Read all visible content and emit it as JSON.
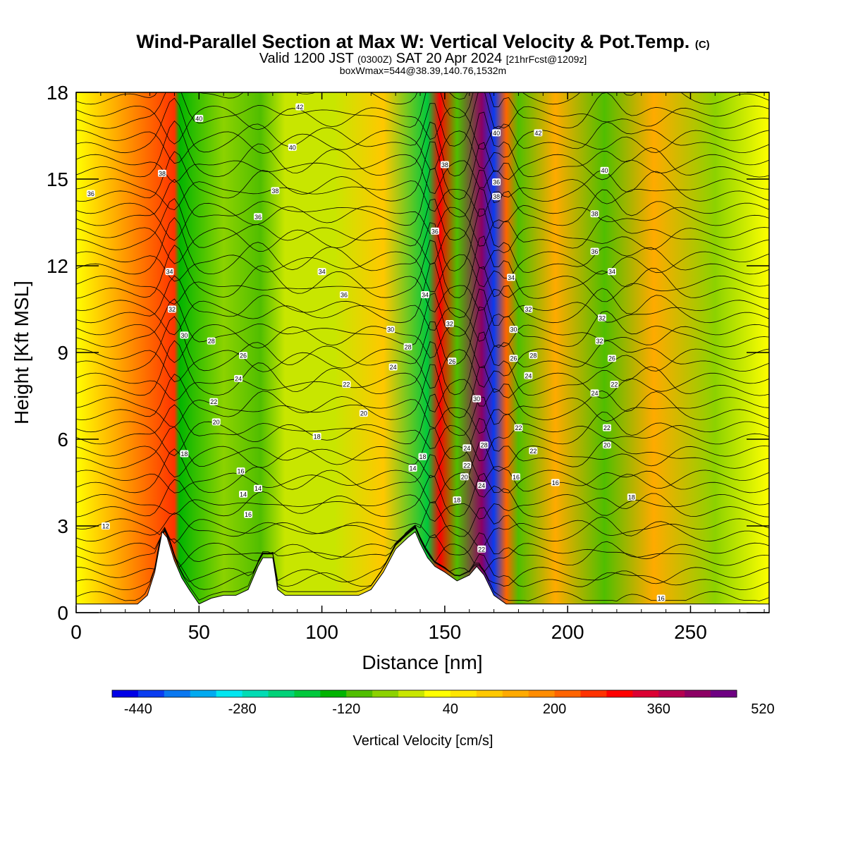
{
  "header": {
    "title": "Wind-Parallel Section at Max W: Vertical Velocity & Pot.Temp.",
    "copyright": "(C)",
    "valid_prefix": "Valid 1200 JST",
    "valid_utc": "(0300Z)",
    "valid_date": "SAT 20 Apr 2024",
    "forecast_info": "[21hrFcst@1209z]",
    "box_info": "boxWmax=544@38.39,140.76,1532m"
  },
  "colorbar": {
    "title": "Vertical Velocity [cm/s]",
    "tick_labels": [
      "-440",
      "-280",
      "-120",
      "40",
      "200",
      "360",
      "520"
    ],
    "tick_values": [
      -440,
      -280,
      -120,
      40,
      200,
      360,
      520
    ],
    "levels_min": -480,
    "levels_step": 40,
    "colors": [
      "#0000e6",
      "#0a3cf0",
      "#0a78f0",
      "#00aaf0",
      "#00e6f0",
      "#00dcb4",
      "#00d278",
      "#00c83c",
      "#00b400",
      "#50be00",
      "#8cd200",
      "#c8e600",
      "#ffff00",
      "#ffe600",
      "#ffc800",
      "#ffaa00",
      "#ff8c00",
      "#ff6400",
      "#ff3200",
      "#ff0000",
      "#dc0032",
      "#b40050",
      "#8c0064",
      "#6e0082"
    ]
  },
  "chart_data": {
    "type": "heatmap",
    "title": "Wind-Parallel Section at Max W: Vertical Velocity & Pot.Temp.",
    "xlabel": "Distance [nm]",
    "ylabel": "Height [Kft MSL]",
    "xlim": [
      0,
      282
    ],
    "ylim": [
      0,
      18
    ],
    "xticks": [
      0,
      50,
      100,
      150,
      200,
      250
    ],
    "yticks": [
      0,
      3,
      6,
      9,
      12,
      15,
      18
    ],
    "fill_variable": "Vertical Velocity [cm/s]",
    "contour_variable": "Potential temperature [C]",
    "max_vertical_velocity_cm_s": 544,
    "terrain_profile": {
      "distance_nm": [
        0,
        25,
        29,
        32,
        35,
        37,
        40,
        43,
        46,
        50,
        55,
        60,
        65,
        70,
        74,
        76,
        80,
        82,
        85,
        88,
        95,
        100,
        105,
        110,
        115,
        120,
        125,
        130,
        135,
        138,
        140,
        143,
        146,
        150,
        155,
        160,
        163,
        166,
        170,
        175,
        180,
        190,
        200,
        230,
        250,
        282
      ],
      "height_kft": [
        0.3,
        0.3,
        0.6,
        1.4,
        2.8,
        2.6,
        1.8,
        1.2,
        0.8,
        0.3,
        0.5,
        0.6,
        0.6,
        0.8,
        1.6,
        1.9,
        1.9,
        0.8,
        0.6,
        0.6,
        0.6,
        0.6,
        0.6,
        0.6,
        0.6,
        0.8,
        1.4,
        2.2,
        2.6,
        2.8,
        2.4,
        1.9,
        1.6,
        1.4,
        1.1,
        1.3,
        1.6,
        1.3,
        0.6,
        0.3,
        0.3,
        0.3,
        0.3,
        0.3,
        0.3,
        0.3
      ]
    },
    "velocity_bands": [
      {
        "distance_nm": 40,
        "cm_s": 240
      },
      {
        "distance_nm": 42,
        "cm_s": -160
      },
      {
        "distance_nm": 60,
        "cm_s": -80
      },
      {
        "distance_nm": 75,
        "cm_s": -120
      },
      {
        "distance_nm": 85,
        "cm_s": -40
      },
      {
        "distance_nm": 105,
        "cm_s": -40
      },
      {
        "distance_nm": 125,
        "cm_s": 80
      },
      {
        "distance_nm": 143,
        "cm_s": -200
      },
      {
        "distance_nm": 148,
        "cm_s": 300
      },
      {
        "distance_nm": 155,
        "cm_s": -120
      },
      {
        "distance_nm": 165,
        "cm_s": 400
      },
      {
        "distance_nm": 170,
        "cm_s": -440
      },
      {
        "distance_nm": 175,
        "cm_s": 200
      },
      {
        "distance_nm": 180,
        "cm_s": -120
      },
      {
        "distance_nm": 195,
        "cm_s": 120
      },
      {
        "distance_nm": 215,
        "cm_s": -120
      },
      {
        "distance_nm": 235,
        "cm_s": 120
      },
      {
        "distance_nm": 260,
        "cm_s": -80
      }
    ],
    "contour_labels": [
      {
        "text": "42",
        "x": 91,
        "y": 17.5
      },
      {
        "text": "40",
        "x": 50,
        "y": 17.1
      },
      {
        "text": "40",
        "x": 88,
        "y": 16.1
      },
      {
        "text": "42",
        "x": 188,
        "y": 16.6
      },
      {
        "text": "40",
        "x": 171,
        "y": 16.6
      },
      {
        "text": "38",
        "x": 35,
        "y": 15.2
      },
      {
        "text": "38",
        "x": 150,
        "y": 15.5
      },
      {
        "text": "40",
        "x": 215,
        "y": 15.3
      },
      {
        "text": "36",
        "x": 6,
        "y": 14.5
      },
      {
        "text": "38",
        "x": 81,
        "y": 14.6
      },
      {
        "text": "36",
        "x": 171,
        "y": 14.9
      },
      {
        "text": "38",
        "x": 171,
        "y": 14.4
      },
      {
        "text": "36",
        "x": 74,
        "y": 13.7
      },
      {
        "text": "38",
        "x": 211,
        "y": 13.8
      },
      {
        "text": "36",
        "x": 146,
        "y": 13.2
      },
      {
        "text": "36",
        "x": 211,
        "y": 12.5
      },
      {
        "text": "34",
        "x": 38,
        "y": 11.8
      },
      {
        "text": "34",
        "x": 100,
        "y": 11.8
      },
      {
        "text": "34",
        "x": 218,
        "y": 11.8
      },
      {
        "text": "34",
        "x": 177,
        "y": 11.6
      },
      {
        "text": "34",
        "x": 142,
        "y": 11.0
      },
      {
        "text": "36",
        "x": 109,
        "y": 11.0
      },
      {
        "text": "32",
        "x": 39,
        "y": 10.5
      },
      {
        "text": "32",
        "x": 184,
        "y": 10.5
      },
      {
        "text": "32",
        "x": 214,
        "y": 10.2
      },
      {
        "text": "32",
        "x": 152,
        "y": 10.0
      },
      {
        "text": "30",
        "x": 44,
        "y": 9.6
      },
      {
        "text": "30",
        "x": 128,
        "y": 9.8
      },
      {
        "text": "30",
        "x": 178,
        "y": 9.8
      },
      {
        "text": "28",
        "x": 55,
        "y": 9.4
      },
      {
        "text": "32",
        "x": 213,
        "y": 9.4
      },
      {
        "text": "28",
        "x": 135,
        "y": 9.2
      },
      {
        "text": "28",
        "x": 186,
        "y": 8.9
      },
      {
        "text": "26",
        "x": 68,
        "y": 8.9
      },
      {
        "text": "26",
        "x": 178,
        "y": 8.8
      },
      {
        "text": "26",
        "x": 218,
        "y": 8.8
      },
      {
        "text": "24",
        "x": 129,
        "y": 8.5
      },
      {
        "text": "26",
        "x": 153,
        "y": 8.7
      },
      {
        "text": "24",
        "x": 184,
        "y": 8.2
      },
      {
        "text": "24",
        "x": 66,
        "y": 8.1
      },
      {
        "text": "22",
        "x": 110,
        "y": 7.9
      },
      {
        "text": "22",
        "x": 219,
        "y": 7.9
      },
      {
        "text": "24",
        "x": 211,
        "y": 7.6
      },
      {
        "text": "30",
        "x": 163,
        "y": 7.4
      },
      {
        "text": "22",
        "x": 56,
        "y": 7.3
      },
      {
        "text": "20",
        "x": 117,
        "y": 6.9
      },
      {
        "text": "20",
        "x": 57,
        "y": 6.6
      },
      {
        "text": "22",
        "x": 180,
        "y": 6.4
      },
      {
        "text": "22",
        "x": 216,
        "y": 6.4
      },
      {
        "text": "18",
        "x": 98,
        "y": 6.1
      },
      {
        "text": "24",
        "x": 159,
        "y": 5.7
      },
      {
        "text": "28",
        "x": 166,
        "y": 5.8
      },
      {
        "text": "20",
        "x": 216,
        "y": 5.8
      },
      {
        "text": "22",
        "x": 186,
        "y": 5.6
      },
      {
        "text": "18",
        "x": 44,
        "y": 5.5
      },
      {
        "text": "18",
        "x": 141,
        "y": 5.4
      },
      {
        "text": "22",
        "x": 159,
        "y": 5.1
      },
      {
        "text": "16",
        "x": 67,
        "y": 4.9
      },
      {
        "text": "14",
        "x": 137,
        "y": 5.0
      },
      {
        "text": "20",
        "x": 158,
        "y": 4.7
      },
      {
        "text": "16",
        "x": 179,
        "y": 4.7
      },
      {
        "text": "16",
        "x": 195,
        "y": 4.5
      },
      {
        "text": "24",
        "x": 165,
        "y": 4.4
      },
      {
        "text": "14",
        "x": 74,
        "y": 4.3
      },
      {
        "text": "14",
        "x": 68,
        "y": 4.1
      },
      {
        "text": "18",
        "x": 155,
        "y": 3.9
      },
      {
        "text": "18",
        "x": 226,
        "y": 4.0
      },
      {
        "text": "16",
        "x": 70,
        "y": 3.4
      },
      {
        "text": "12",
        "x": 12,
        "y": 3.0
      },
      {
        "text": "22",
        "x": 165,
        "y": 2.2
      },
      {
        "text": "16",
        "x": 238,
        "y": 0.5
      }
    ]
  }
}
